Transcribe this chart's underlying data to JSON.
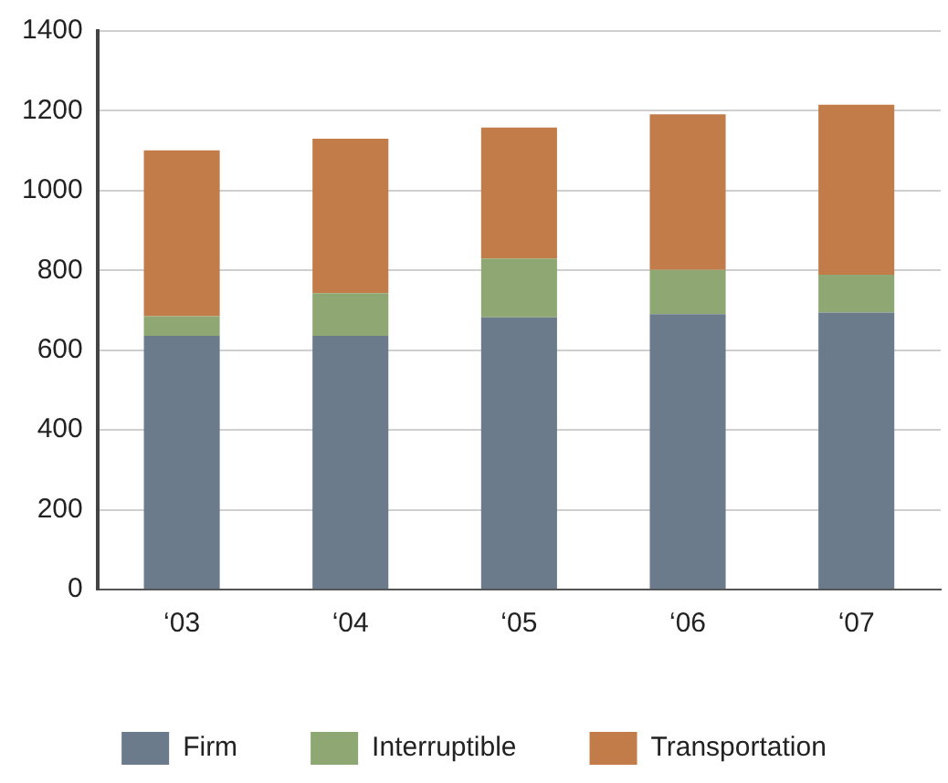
{
  "chart_data": {
    "type": "bar",
    "stacked": true,
    "categories": [
      "‘03",
      "‘04",
      "‘05",
      "‘06",
      "‘07"
    ],
    "series": [
      {
        "name": "Firm",
        "color": "#6b7b8c",
        "values": [
          636,
          636,
          682,
          690,
          694
        ]
      },
      {
        "name": "Interruptible",
        "color": "#8fa873",
        "values": [
          49,
          107,
          148,
          111,
          95
        ]
      },
      {
        "name": "Transportation",
        "color": "#c27c4a",
        "values": [
          416,
          387,
          328,
          390,
          426
        ]
      }
    ],
    "ylim": [
      0,
      1400
    ],
    "yticks": [
      0,
      200,
      400,
      600,
      800,
      1000,
      1200,
      1400
    ],
    "grid": "y",
    "legend": "bottom"
  }
}
